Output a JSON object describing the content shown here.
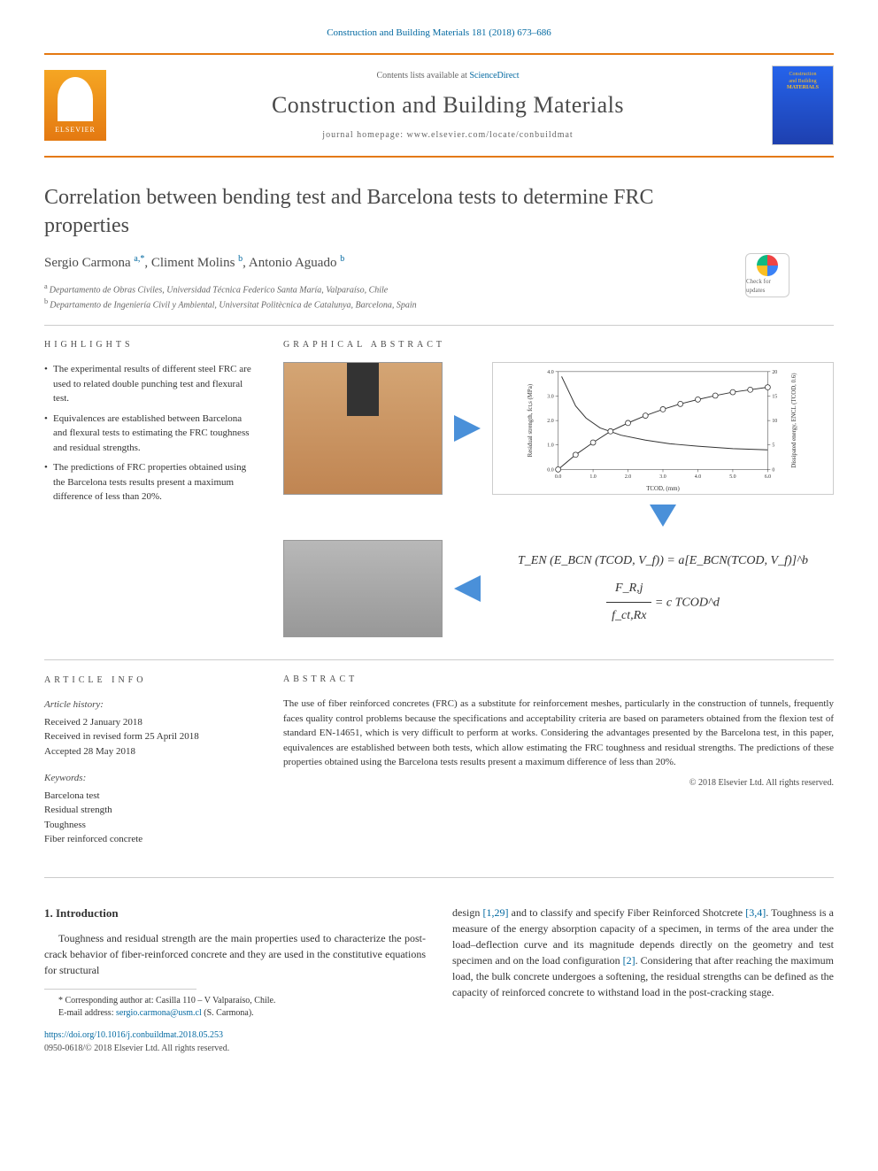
{
  "citation": "Construction and Building Materials 181 (2018) 673–686",
  "banner": {
    "contents_prefix": "Contents lists available at ",
    "contents_link": "ScienceDirect",
    "journal_name": "Construction and Building Materials",
    "homepage_prefix": "journal homepage: ",
    "homepage": "www.elsevier.com/locate/conbuildmat",
    "publisher": "ELSEVIER",
    "cover_title_1": "Construction",
    "cover_title_2": "and Building",
    "cover_title_3": "MATERIALS"
  },
  "title": "Correlation between bending test and Barcelona tests to determine FRC properties",
  "check_updates_label": "Check for updates",
  "authors_html": "Sergio Carmona|a,*|, Climent Molins|b|, Antonio Aguado|b|",
  "authors": [
    {
      "name": "Sergio Carmona",
      "aff": "a,*"
    },
    {
      "name": "Climent Molins",
      "aff": "b"
    },
    {
      "name": "Antonio Aguado",
      "aff": "b"
    }
  ],
  "affiliations": [
    {
      "sup": "a",
      "text": "Departamento de Obras Civiles, Universidad Técnica Federico Santa María, Valparaíso, Chile"
    },
    {
      "sup": "b",
      "text": "Departamento de Ingeniería Civil y Ambiental, Universitat Politècnica de Catalunya, Barcelona, Spain"
    }
  ],
  "labels": {
    "highlights": "HIGHLIGHTS",
    "graphical_abstract": "GRAPHICAL ABSTRACT",
    "article_info": "ARTICLE INFO",
    "abstract": "ABSTRACT"
  },
  "highlights": [
    "The experimental results of different steel FRC are used to related double punching test and flexural test.",
    "Equivalences are established between Barcelona and flexural tests to estimating the FRC toughness and residual strengths.",
    "The predictions of FRC properties obtained using the Barcelona tests results present a maximum difference of less than 20%."
  ],
  "ga_chart": {
    "type": "line-dual-axis",
    "title": "",
    "x_label": "TCOD, (mm)",
    "y_label_left": "Residual strength, fct,s (MPa)",
    "y_label_right": "Dissipated energy, ENCL (TCOD, 0.6)",
    "xlim": [
      0.0,
      6.0
    ],
    "x_ticks": [
      0.0,
      1.0,
      2.0,
      3.0,
      4.0,
      5.0,
      6.0
    ],
    "ylim_left": [
      0.0,
      4.0
    ],
    "y_ticks_left": [
      0.0,
      1.0,
      2.0,
      3.0,
      4.0
    ],
    "ylim_right": [
      0,
      20
    ],
    "y_ticks_right": [
      0,
      5,
      10,
      15,
      20
    ],
    "series": [
      {
        "name": "residual_strength",
        "axis": "left",
        "color": "#333333",
        "line_width": 1,
        "marker": "none",
        "x": [
          0.1,
          0.3,
          0.5,
          0.8,
          1.2,
          1.8,
          2.5,
          3.2,
          4.0,
          5.0,
          6.0
        ],
        "y": [
          3.8,
          3.2,
          2.6,
          2.1,
          1.7,
          1.4,
          1.2,
          1.05,
          0.95,
          0.85,
          0.8
        ]
      },
      {
        "name": "dissipated_energy",
        "axis": "right",
        "color": "#333333",
        "line_width": 1,
        "marker": "circle",
        "marker_size": 3,
        "x": [
          0.0,
          0.5,
          1.0,
          1.5,
          2.0,
          2.5,
          3.0,
          3.5,
          4.0,
          4.5,
          5.0,
          5.5,
          6.0
        ],
        "y": [
          0,
          3,
          5.5,
          7.8,
          9.5,
          11,
          12.3,
          13.4,
          14.3,
          15.1,
          15.8,
          16.3,
          16.8
        ]
      }
    ],
    "background_color": "#ffffff",
    "axis_color": "#333333",
    "tick_fontsize": 6,
    "label_fontsize": 7
  },
  "equations": {
    "eq1_lhs": "T_EN (E_BCN (TCOD, V_f))",
    "eq1_rhs": "a[E_BCN(TCOD, V_f)]^b",
    "eq2_num": "F_R,j",
    "eq2_den": "f_ct,Rx",
    "eq2_rhs": "c TCOD^d"
  },
  "article_info": {
    "history_label": "Article history:",
    "received": "Received 2 January 2018",
    "revised": "Received in revised form 25 April 2018",
    "accepted": "Accepted 28 May 2018",
    "keywords_label": "Keywords:",
    "keywords": [
      "Barcelona test",
      "Residual strength",
      "Toughness",
      "Fiber reinforced concrete"
    ]
  },
  "abstract": "The use of fiber reinforced concretes (FRC) as a substitute for reinforcement meshes, particularly in the construction of tunnels, frequently faces quality control problems because the specifications and acceptability criteria are based on parameters obtained from the flexion test of standard EN-14651, which is very difficult to perform at works. Considering the advantages presented by the Barcelona test, in this paper, equivalences are established between both tests, which allow estimating the FRC toughness and residual strengths. The predictions of these properties obtained using the Barcelona tests results present a maximum difference of less than 20%.",
  "abstract_copyright": "© 2018 Elsevier Ltd. All rights reserved.",
  "body": {
    "section_number": "1.",
    "section_title": "Introduction",
    "col1_para": "Toughness and residual strength are the main properties used to characterize the post-crack behavior of fiber-reinforced concrete and they are used in the constitutive equations for structural",
    "col2_para_prefix": "design ",
    "col2_ref1": "[1,29]",
    "col2_mid1": " and to classify and specify Fiber Reinforced Shotcrete ",
    "col2_ref2": "[3,4]",
    "col2_mid2": ". Toughness is a measure of the energy absorption capacity of a specimen, in terms of the area under the load–deflection curve and its magnitude depends directly on the geometry and test specimen and on the load configuration ",
    "col2_ref3": "[2]",
    "col2_mid3": ". Considering that after reaching the maximum load, the bulk concrete undergoes a softening, the residual strengths can be defined as the capacity of reinforced concrete to withstand load in the post-cracking stage."
  },
  "footnote": {
    "corresponding": "* Corresponding author at: Casilla 110 – V Valparaíso, Chile.",
    "email_label": "E-mail address: ",
    "email": "sergio.carmona@usm.cl",
    "email_suffix": " (S. Carmona)."
  },
  "doi": "https://doi.org/10.1016/j.conbuildmat.2018.05.253",
  "footer_copyright": "0950-0618/© 2018 Elsevier Ltd. All rights reserved.",
  "colors": {
    "accent_orange": "#e47911",
    "link_blue": "#0369a1",
    "arrow_blue": "#4a90d9",
    "text_gray": "#4a4a4a",
    "rule_gray": "#cccccc"
  }
}
